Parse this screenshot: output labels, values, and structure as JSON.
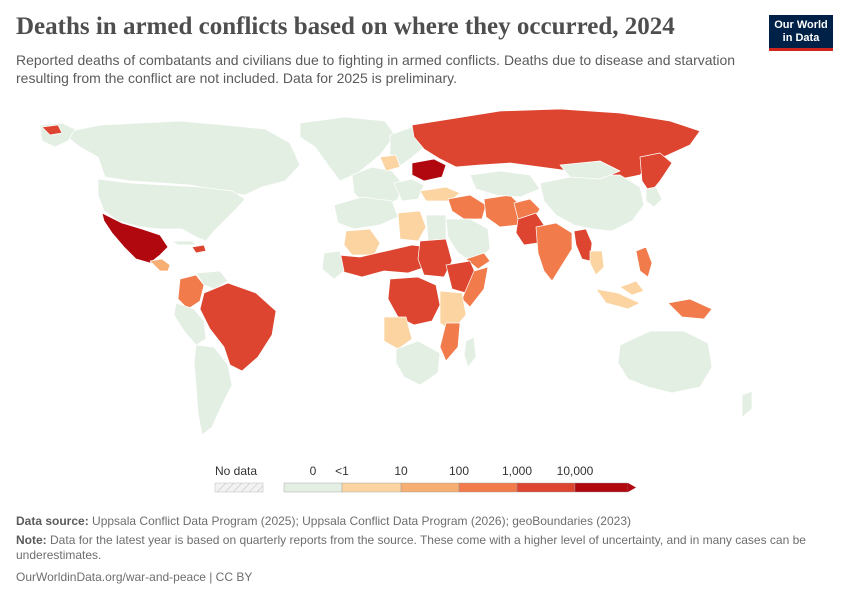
{
  "header": {
    "title": "Deaths in armed conflicts based on where they occurred, 2024",
    "subtitle": "Reported deaths of combatants and civilians due to fighting in armed conflicts. Deaths due to disease and starvation resulting from the conflict are not included. Data for 2025 is preliminary."
  },
  "logo": {
    "line1": "Our World",
    "line2": "in Data"
  },
  "legend": {
    "no_data_label": "No data",
    "bins": [
      "0",
      "<1",
      "10",
      "100",
      "1,000",
      "10,000"
    ],
    "colors": [
      "#e4efe4",
      "#fbd4a2",
      "#f6ae72",
      "#f17b4b",
      "#dd4530",
      "#b0080e"
    ],
    "no_data_color": "#f2f2f2"
  },
  "map_colors": {
    "none": "#e4efe4",
    "very_low": "#fbd4a2",
    "low": "#f6ae72",
    "medium": "#f17b4b",
    "high": "#dd4530",
    "very_high": "#b0080e",
    "border": "#ffffff"
  },
  "footer": {
    "source_label": "Data source:",
    "source_text": "Uppsala Conflict Data Program (2025); Uppsala Conflict Data Program (2026); geoBoundaries (2023)",
    "note_label": "Note:",
    "note_text": "Data for the latest year is based on quarterly reports from the source. These come with a higher level of uncertainty, and in many cases can be underestimates.",
    "url": "OurWorldinData.org/war-and-peace | CC BY"
  }
}
